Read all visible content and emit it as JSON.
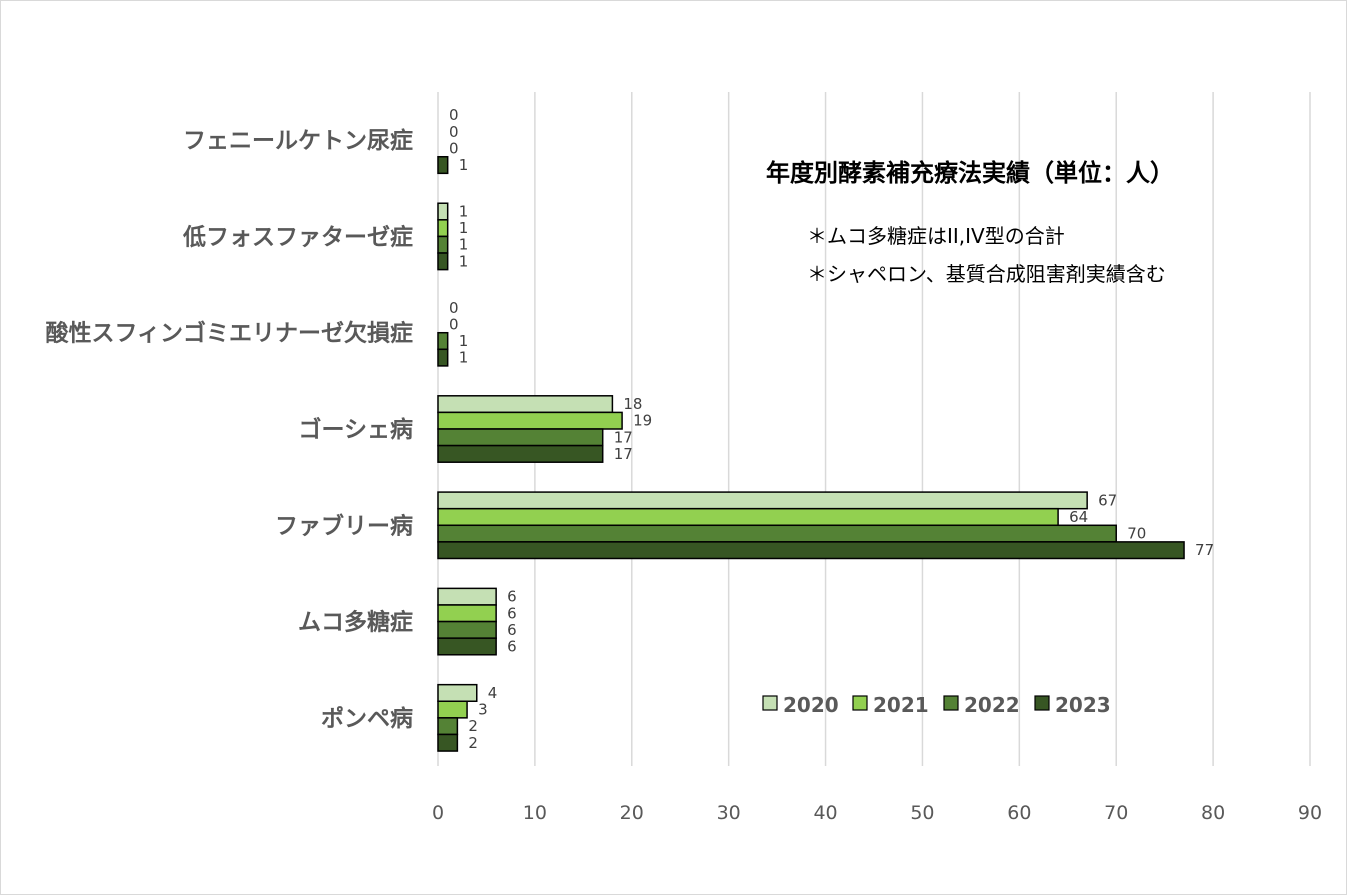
{
  "chart_data": {
    "type": "bar",
    "orientation": "horizontal",
    "title": "年度別酵素補充療法実績（単位：人）",
    "notes": [
      "＊ムコ多糖症はII,IV型の合計",
      "＊シャペロン、基質合成阻害剤実績含む"
    ],
    "categories": [
      "フェニールケトン尿症",
      "低フォスファターゼ症",
      "酸性スフィンゴミエリナーゼ欠損症",
      "ゴーシェ病",
      "ファブリー病",
      "ムコ多糖症",
      "ポンペ病"
    ],
    "series": [
      {
        "name": "2020",
        "color": "#c5e0b4",
        "values": [
          0,
          1,
          0,
          18,
          67,
          6,
          4
        ]
      },
      {
        "name": "2021",
        "color": "#92d050",
        "values": [
          0,
          1,
          0,
          19,
          64,
          6,
          3
        ]
      },
      {
        "name": "2022",
        "color": "#548235",
        "values": [
          0,
          1,
          1,
          17,
          70,
          6,
          2
        ]
      },
      {
        "name": "2023",
        "color": "#375623",
        "values": [
          1,
          1,
          1,
          17,
          77,
          6,
          2
        ]
      }
    ],
    "xlim": [
      0,
      90
    ],
    "xticks": [
      "0",
      "10",
      "20",
      "30",
      "40",
      "50",
      "60",
      "70",
      "80",
      "90"
    ],
    "grid": true,
    "legend_position": "bottom-right"
  }
}
